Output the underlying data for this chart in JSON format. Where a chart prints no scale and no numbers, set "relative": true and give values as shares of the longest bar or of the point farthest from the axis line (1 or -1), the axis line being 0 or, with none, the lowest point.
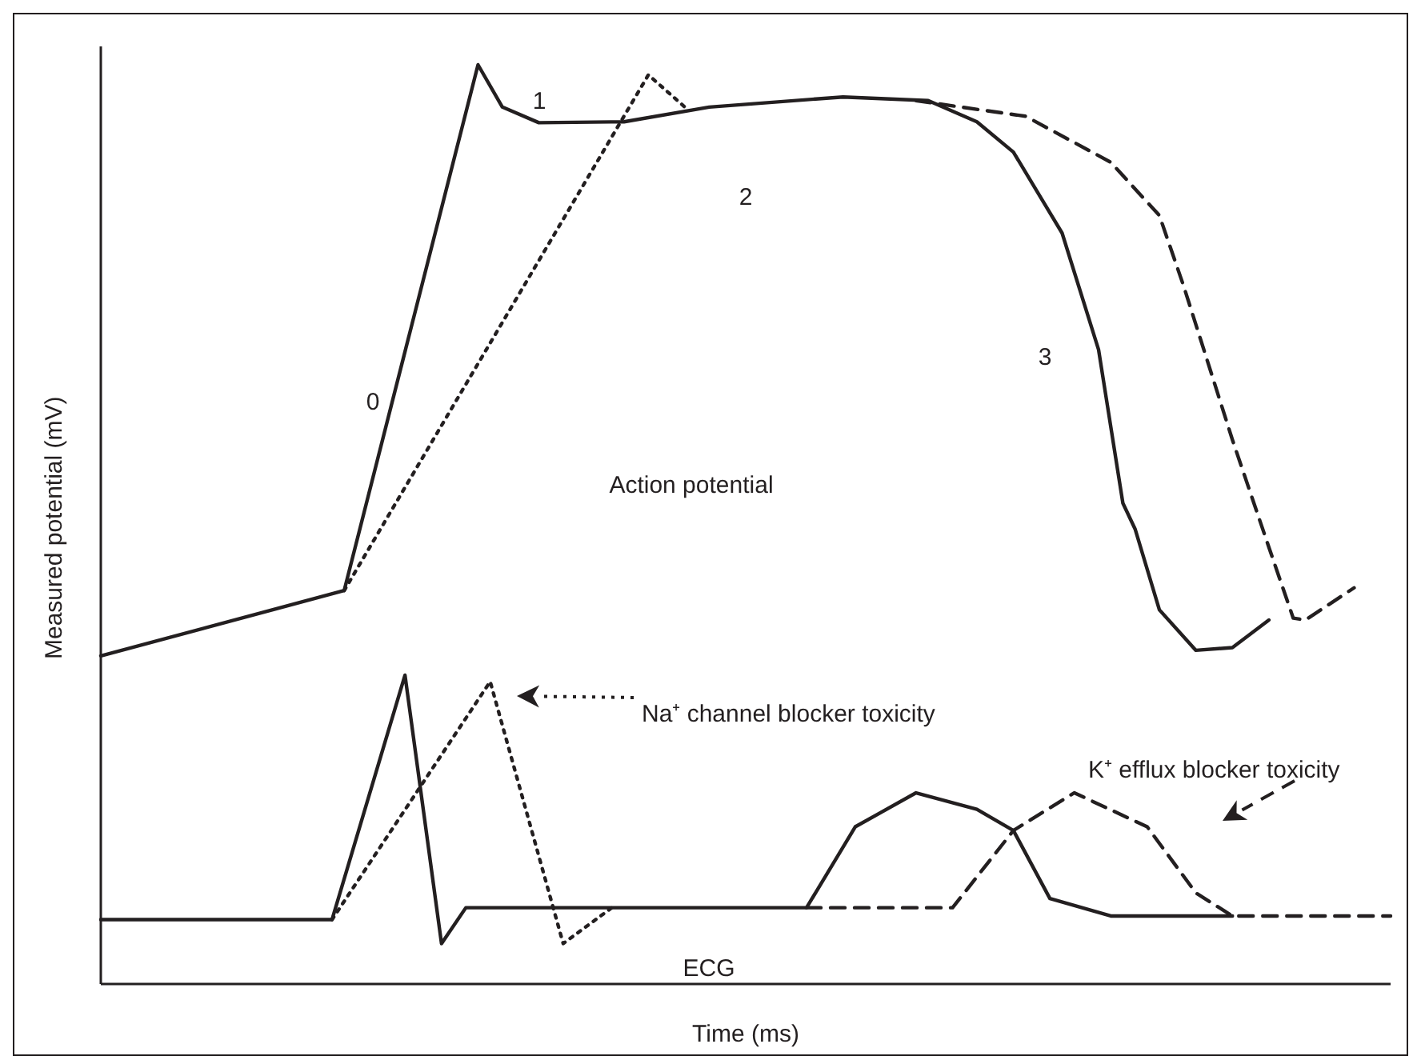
{
  "chart_data": {
    "type": "line",
    "relative": true,
    "xlabel": "Time (ms)",
    "ylabel": "Measured potential (mV)",
    "categories": [
      null,
      null,
      null,
      null,
      null,
      null,
      null,
      null,
      null,
      null,
      null,
      null,
      null,
      null,
      null,
      null,
      null,
      null,
      null,
      null,
      null,
      null,
      null,
      null,
      null,
      null,
      null,
      null,
      null,
      null,
      null,
      null,
      null,
      null,
      null,
      null,
      null,
      null,
      null,
      null,
      null,
      null,
      null,
      null,
      null,
      null,
      null,
      null,
      null,
      null,
      null,
      null,
      null,
      null,
      null,
      null,
      null,
      null,
      null,
      null,
      null,
      null,
      null,
      null,
      null,
      null,
      null,
      null,
      null,
      null,
      null,
      null,
      null,
      null,
      null,
      null,
      null,
      null,
      null,
      null,
      null,
      null,
      null,
      null,
      null,
      null,
      null,
      null,
      null,
      null,
      null,
      null,
      null,
      null,
      null,
      null,
      null,
      null,
      null,
      null,
      null,
      null,
      null,
      null,
      null,
      null,
      null
    ],
    "series": [
      {
        "color": "#231f20",
        "line_style": "solid",
        "values": [
          0.357,
          null,
          null,
          null,
          null,
          null,
          null,
          null,
          null,
          null,
          null,
          null,
          null,
          null,
          null,
          null,
          null,
          null,
          null,
          null,
          0.428,
          null,
          null,
          null,
          null,
          null,
          null,
          null,
          null,
          null,
          null,
          1.0,
          null,
          0.954,
          null,
          null,
          0.937,
          null,
          null,
          null,
          null,
          null,
          null,
          0.938,
          null,
          null,
          null,
          null,
          null,
          null,
          0.954,
          null,
          null,
          null,
          null,
          null,
          null,
          null,
          null,
          null,
          null,
          0.965,
          null,
          null,
          null,
          null,
          null,
          null,
          0.961,
          null,
          null,
          null,
          0.938,
          null,
          null,
          0.905,
          null,
          null,
          null,
          0.817,
          null,
          null,
          0.69,
          null,
          0.523,
          0.495,
          null,
          0.407,
          null,
          null,
          0.363,
          null,
          null,
          0.366,
          null,
          null,
          0.396,
          null,
          null,
          null,
          null,
          null,
          null,
          null,
          null,
          null,
          null
        ]
      },
      {
        "color": "#231f20",
        "line_style": "dotted",
        "values": [
          null,
          null,
          null,
          null,
          null,
          null,
          null,
          null,
          null,
          null,
          null,
          null,
          null,
          null,
          null,
          null,
          null,
          null,
          null,
          null,
          0.428,
          null,
          null,
          null,
          null,
          null,
          null,
          null,
          null,
          null,
          null,
          null,
          null,
          null,
          null,
          null,
          null,
          null,
          null,
          null,
          null,
          null,
          null,
          null,
          null,
          0.989,
          null,
          null,
          0.954,
          null,
          null,
          null,
          null,
          null,
          null,
          null,
          null,
          null,
          null,
          null,
          null,
          null,
          null,
          null,
          null,
          null,
          null,
          null,
          null,
          null,
          null,
          null,
          null,
          null,
          null,
          null,
          null,
          null,
          null,
          null,
          null,
          null,
          null,
          null,
          null,
          null,
          null,
          null,
          null,
          null,
          null,
          null,
          null,
          null,
          null,
          null,
          null,
          null,
          null,
          null,
          null,
          null,
          null,
          null,
          null,
          null,
          null
        ]
      },
      {
        "color": "#231f20",
        "line_style": "dashed",
        "values": [
          null,
          null,
          null,
          null,
          null,
          null,
          null,
          null,
          null,
          null,
          null,
          null,
          null,
          null,
          null,
          null,
          null,
          null,
          null,
          null,
          null,
          null,
          null,
          null,
          null,
          null,
          null,
          null,
          null,
          null,
          null,
          null,
          null,
          null,
          null,
          null,
          null,
          null,
          null,
          null,
          null,
          null,
          null,
          null,
          null,
          null,
          null,
          null,
          null,
          null,
          null,
          null,
          null,
          null,
          null,
          null,
          null,
          null,
          null,
          null,
          null,
          null,
          null,
          null,
          null,
          null,
          null,
          0.961,
          null,
          null,
          null,
          null,
          null,
          null,
          null,
          null,
          0.944,
          null,
          null,
          null,
          null,
          null,
          null,
          0.894,
          null,
          null,
          null,
          0.836,
          null,
          0.759,
          null,
          null,
          null,
          0.592,
          null,
          null,
          0.475,
          null,
          0.398,
          0.396,
          null,
          null,
          null,
          0.431,
          null,
          null,
          null
        ]
      },
      {
        "color": "#231f20",
        "line_style": "solid",
        "values": [
          0.07,
          null,
          null,
          null,
          null,
          null,
          null,
          null,
          null,
          null,
          null,
          null,
          null,
          null,
          null,
          null,
          null,
          null,
          null,
          0.07,
          null,
          null,
          null,
          null,
          null,
          0.336,
          null,
          null,
          0.044,
          null,
          0.083,
          null,
          null,
          null,
          null,
          null,
          null,
          null,
          null,
          null,
          null,
          null,
          null,
          null,
          null,
          null,
          null,
          null,
          null,
          null,
          null,
          null,
          null,
          null,
          null,
          null,
          null,
          null,
          0.083,
          null,
          null,
          null,
          0.171,
          null,
          null,
          null,
          null,
          0.208,
          null,
          null,
          null,
          null,
          0.19,
          null,
          null,
          0.167,
          null,
          null,
          0.093,
          null,
          null,
          null,
          null,
          0.074,
          null,
          null,
          null,
          null,
          null,
          null,
          null,
          null,
          null,
          0.074,
          null,
          null,
          null,
          null,
          null,
          null,
          null,
          null,
          null,
          null,
          null,
          null,
          null
        ]
      },
      {
        "color": "#231f20",
        "line_style": "dotted",
        "values": [
          null,
          null,
          null,
          null,
          null,
          null,
          null,
          null,
          null,
          null,
          null,
          null,
          null,
          null,
          null,
          null,
          null,
          null,
          null,
          0.07,
          null,
          null,
          null,
          null,
          null,
          null,
          null,
          null,
          null,
          null,
          null,
          null,
          0.329,
          null,
          null,
          null,
          null,
          null,
          0.044,
          null,
          null,
          null,
          0.083,
          null,
          null,
          null,
          null,
          null,
          null,
          null,
          null,
          null,
          null,
          null,
          null,
          null,
          null,
          null,
          null,
          null,
          null,
          null,
          null,
          null,
          null,
          null,
          null,
          null,
          null,
          null,
          null,
          null,
          null,
          null,
          null,
          null,
          null,
          null,
          null,
          null,
          null,
          null,
          null,
          null,
          null,
          null,
          null,
          null,
          null,
          null,
          null,
          null,
          null,
          null,
          null,
          null,
          null,
          null,
          null,
          null,
          null,
          null,
          null,
          null,
          null,
          null,
          null
        ]
      },
      {
        "color": "#231f20",
        "line_style": "dashed",
        "values": [
          null,
          null,
          null,
          null,
          null,
          null,
          null,
          null,
          null,
          null,
          null,
          null,
          null,
          null,
          null,
          null,
          null,
          null,
          null,
          null,
          null,
          null,
          null,
          null,
          null,
          null,
          null,
          null,
          null,
          null,
          null,
          null,
          null,
          null,
          null,
          null,
          null,
          null,
          null,
          null,
          null,
          null,
          null,
          null,
          null,
          null,
          null,
          null,
          null,
          null,
          null,
          null,
          null,
          null,
          null,
          null,
          null,
          null,
          0.083,
          null,
          null,
          null,
          null,
          null,
          null,
          null,
          null,
          null,
          null,
          null,
          0.083,
          null,
          null,
          null,
          null,
          0.167,
          null,
          null,
          null,
          null,
          0.208,
          null,
          null,
          null,
          null,
          null,
          0.171,
          null,
          null,
          null,
          0.099,
          null,
          null,
          0.074,
          null,
          null,
          null,
          null,
          null,
          null,
          null,
          null,
          null,
          null,
          null,
          null,
          0.074
        ]
      }
    ],
    "annotations": [
      "0",
      "1",
      "2",
      "3",
      "Action potential",
      "ECG",
      "Na⁺ channel blocker toxicity",
      "K⁺ efflux blocker toxicity"
    ]
  }
}
